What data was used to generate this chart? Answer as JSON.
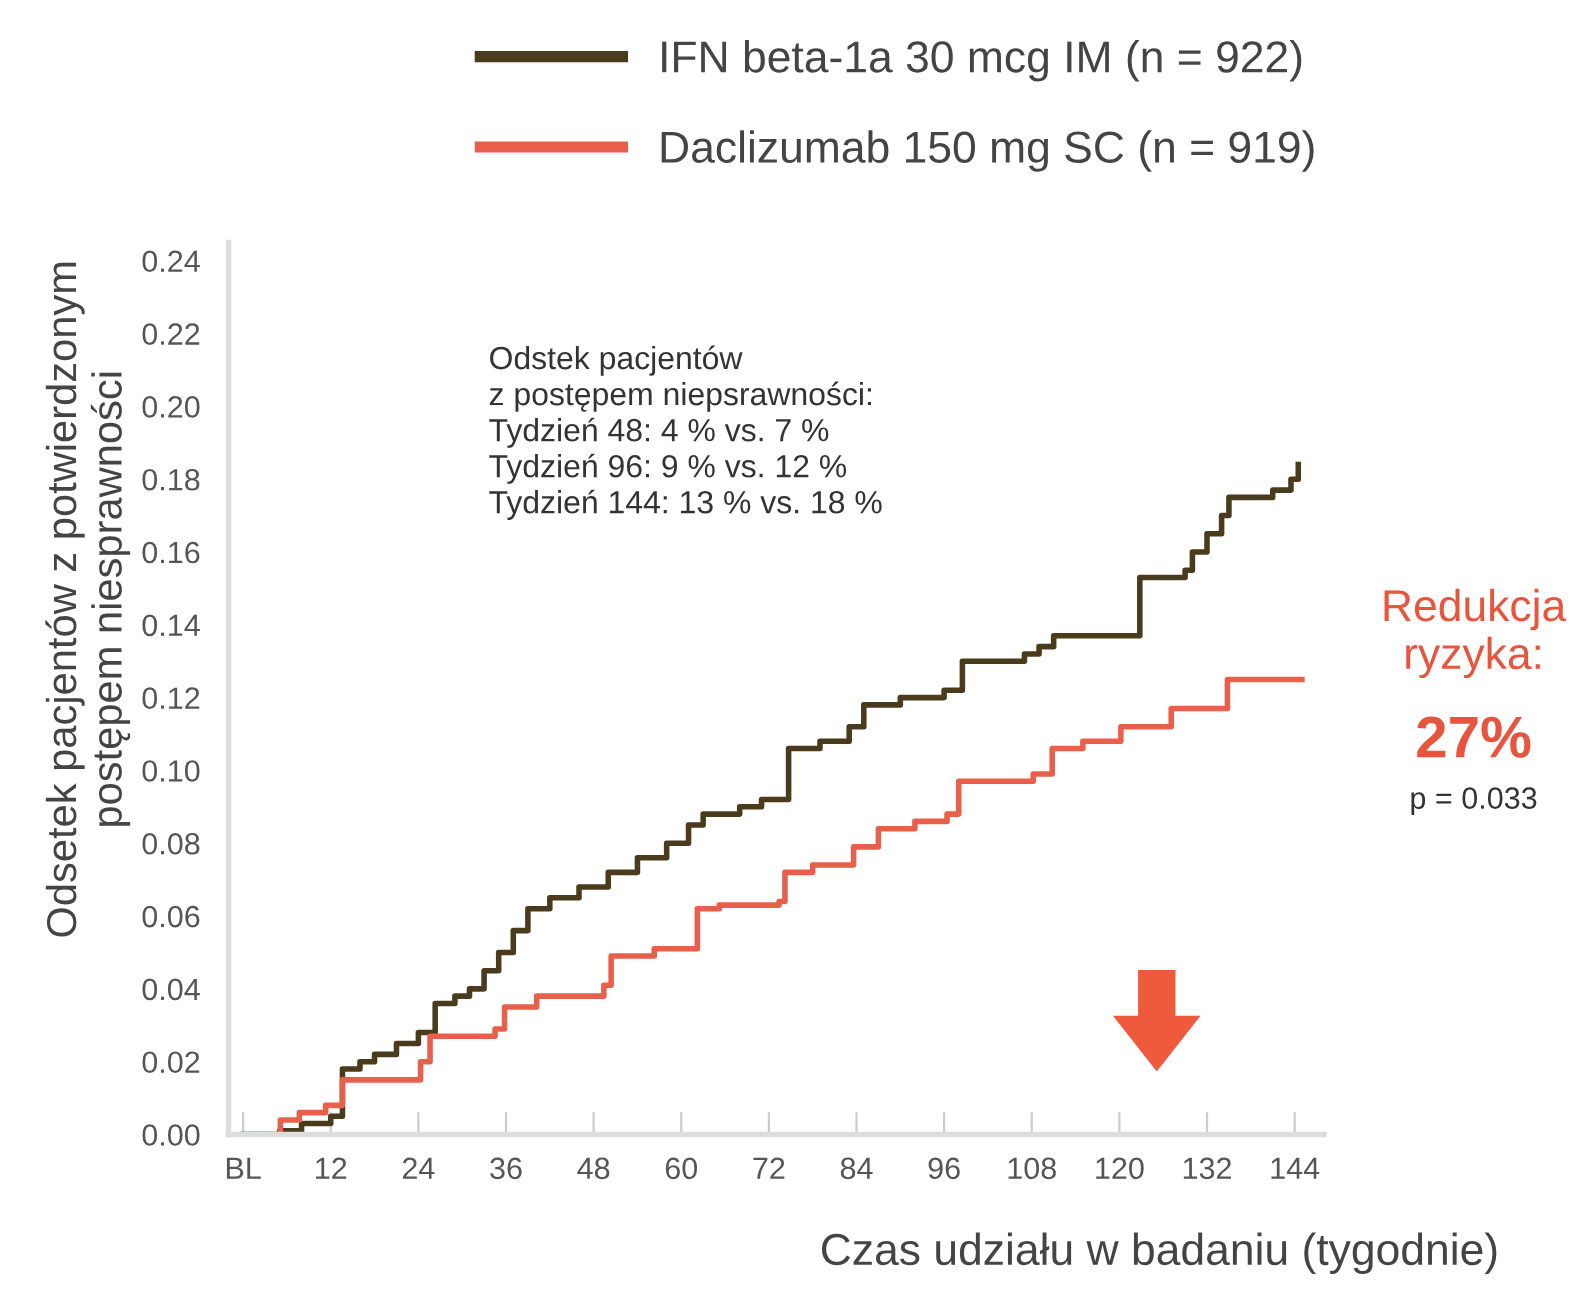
{
  "chart_data": {
    "type": "step",
    "xlabel": "Czas udziału w badaniu (tygodnie)",
    "ylabel": "Odsetek pacjentów z potwierdzonym\npostępem niesprawności",
    "legend": "top",
    "grid": false,
    "xlim": [
      -2,
      148
    ],
    "ylim": [
      0,
      0.245
    ],
    "xticks": [
      {
        "value": 0,
        "label": "BL"
      },
      12,
      24,
      36,
      48,
      60,
      72,
      84,
      96,
      108,
      120,
      132,
      144
    ],
    "yticks": [
      {
        "value": 0,
        "label": "0.00"
      },
      {
        "value": 0.02,
        "label": "0.02"
      },
      {
        "value": 0.04,
        "label": "0.04"
      },
      {
        "value": 0.06,
        "label": "0.06"
      },
      {
        "value": 0.08,
        "label": "0.08"
      },
      {
        "value": 0.1,
        "label": "0.10"
      },
      {
        "value": 0.12,
        "label": "0.12"
      },
      {
        "value": 0.14,
        "label": "0.14"
      },
      {
        "value": 0.16,
        "label": "0.16"
      },
      {
        "value": 0.18,
        "label": "0.18"
      },
      {
        "value": 0.2,
        "label": "0.20"
      },
      {
        "value": 0.22,
        "label": "0.22"
      },
      {
        "value": 0.24,
        "label": "0.24"
      }
    ],
    "series": [
      {
        "name": "IFN beta-1a 30 mcg IM (n = 922)",
        "color": "#4a3b1c",
        "x": [
          0,
          5,
          8,
          12,
          13.6,
          16,
          18,
          21,
          24,
          26.3,
          29,
          31,
          33,
          35,
          37,
          39,
          42,
          46,
          50,
          54,
          58,
          61,
          63,
          68,
          71,
          74.7,
          79,
          83,
          85,
          90,
          96,
          98.5,
          107,
          109,
          111,
          122.8,
          129,
          130,
          132,
          134,
          135,
          141,
          143.5,
          144.5
        ],
        "values": [
          0,
          0.001,
          0.003,
          0.005,
          0.018,
          0.02,
          0.022,
          0.025,
          0.028,
          0.036,
          0.038,
          0.04,
          0.045,
          0.05,
          0.056,
          0.062,
          0.065,
          0.068,
          0.072,
          0.076,
          0.08,
          0.085,
          0.088,
          0.09,
          0.092,
          0.106,
          0.108,
          0.112,
          0.118,
          0.12,
          0.122,
          0.13,
          0.132,
          0.134,
          0.137,
          0.153,
          0.155,
          0.16,
          0.165,
          0.17,
          0.175,
          0.177,
          0.18,
          0.184
        ]
      },
      {
        "name": "Daclizumab 150 mg SC (n = 919)",
        "color": "#e8604c",
        "x": [
          0,
          5.1,
          7.7,
          11.3,
          13.6,
          24.3,
          25.6,
          34.5,
          35.8,
          40.2,
          49.4,
          50.4,
          56.3,
          62.2,
          65.2,
          73.4,
          74.2,
          78,
          83.6,
          87,
          92,
          96.4,
          98,
          108.2,
          110.8,
          115,
          120.2,
          127.1,
          134.8,
          145
        ],
        "values": [
          0,
          0.004,
          0.006,
          0.008,
          0.015,
          0.02,
          0.027,
          0.029,
          0.035,
          0.038,
          0.041,
          0.049,
          0.051,
          0.062,
          0.063,
          0.064,
          0.072,
          0.074,
          0.079,
          0.084,
          0.086,
          0.088,
          0.097,
          0.099,
          0.106,
          0.108,
          0.112,
          0.117,
          0.125,
          0.125
        ]
      }
    ],
    "annotations": [
      "Odstek pacjentów\nz postępem niepsrawności:\nTydzień 48: 4 % vs. 7 %\nTydzień 96: 9 % vs. 12 %\nTydzień 144: 13 % vs. 18 %",
      "Redukcja\nryzyka:",
      "27%",
      "p = 0.033"
    ]
  }
}
